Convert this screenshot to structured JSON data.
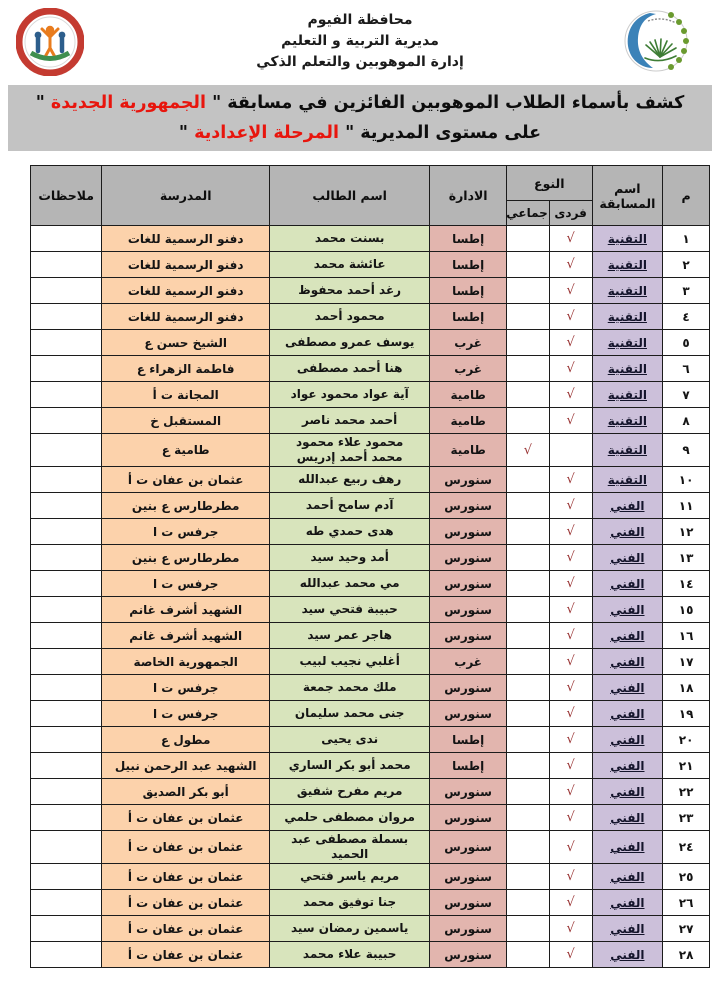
{
  "colors": {
    "header_gray": "#b5b5b5",
    "title_bar_gray": "#c3c3c3",
    "highlight_red": "#e8150d",
    "competition_purple": "#ccc0da",
    "administration_rose": "#e2b5ae",
    "student_green": "#d8e4bc",
    "school_peach": "#fcd2ab",
    "check_red": "#993333",
    "border_black": "#1c1c1c"
  },
  "header": {
    "line1": "محافظة الفيوم",
    "line2": "مديرية التربية و التعليم",
    "line3": "إدارة الموهوبين والتعلم الذكي",
    "left_logo_icon": "gifted-administration-seal-icon",
    "right_logo_icon": "fayoum-education-directorate-logo-icon"
  },
  "title": {
    "line1": {
      "black": "كشف بأسماء الطلاب الموهوبين الفائزين في مسابقة \" ",
      "red": "الجمهورية الجديدة",
      "end": " \""
    },
    "line2": {
      "black": "على مستوى المديرية \" ",
      "red": "المرحلة الإعدادية",
      "end": " \""
    }
  },
  "table": {
    "check_glyph": "√",
    "columns": {
      "no": "م",
      "competition": "اسم المسابقة",
      "type": "النوع",
      "individual": "فردى",
      "group": "جماعي",
      "administration": "الادارة",
      "student": "اسم الطالب",
      "school": "المدرسة",
      "notes": "ملاحظات"
    },
    "rows": [
      {
        "no": "١",
        "competition": "التقنية",
        "type": "individual",
        "administration": "إطسا",
        "student": "بسنت محمد",
        "student2": "",
        "school": "دفنو الرسمية للغات",
        "notes": ""
      },
      {
        "no": "٢",
        "competition": "التقنية",
        "type": "individual",
        "administration": "إطسا",
        "student": "عائشة محمد",
        "student2": "",
        "school": "دفنو الرسمية للغات",
        "notes": ""
      },
      {
        "no": "٣",
        "competition": "التقنية",
        "type": "individual",
        "administration": "إطسا",
        "student": "رغد أحمد محفوظ",
        "student2": "",
        "school": "دفنو الرسمية للغات",
        "notes": ""
      },
      {
        "no": "٤",
        "competition": "التقنية",
        "type": "individual",
        "administration": "إطسا",
        "student": "محمود أحمد",
        "student2": "",
        "school": "دفنو الرسمية للغات",
        "notes": ""
      },
      {
        "no": "٥",
        "competition": "التقنية",
        "type": "individual",
        "administration": "غرب",
        "student": "يوسف عمرو مصطفى",
        "student2": "",
        "school": "الشيخ حسن ع",
        "notes": ""
      },
      {
        "no": "٦",
        "competition": "التقنية",
        "type": "individual",
        "administration": "غرب",
        "student": "هنا أحمد مصطفى",
        "student2": "",
        "school": "فاطمة الزهراء ع",
        "notes": ""
      },
      {
        "no": "٧",
        "competition": "التقنية",
        "type": "individual",
        "administration": "طامية",
        "student": "آية عواد محمود عواد",
        "student2": "",
        "school": "المجانة ت أ",
        "notes": ""
      },
      {
        "no": "٨",
        "competition": "التقنية",
        "type": "individual",
        "administration": "طامية",
        "student": "أحمد محمد ناصر",
        "student2": "",
        "school": "المستقبل خ",
        "notes": ""
      },
      {
        "no": "٩",
        "competition": "التقنية",
        "type": "group",
        "administration": "طامية",
        "student": "محمود علاء محمود",
        "student2": "محمد أحمد إدريس",
        "school": "طامية ع",
        "notes": ""
      },
      {
        "no": "١٠",
        "competition": "التقنية",
        "type": "individual",
        "administration": "سنورس",
        "student": "رهف ربيع عبدالله",
        "student2": "",
        "school": "عثمان بن عفان ت أ",
        "notes": ""
      },
      {
        "no": "١١",
        "competition": "الفني",
        "type": "individual",
        "administration": "سنورس",
        "student": "آدم سامح أحمد",
        "student2": "",
        "school": "مطرطارس ع بنين",
        "notes": ""
      },
      {
        "no": "١٢",
        "competition": "الفني",
        "type": "individual",
        "administration": "سنورس",
        "student": "هدى حمدي طه",
        "student2": "",
        "school": "جرفس ت ا",
        "notes": ""
      },
      {
        "no": "١٣",
        "competition": "الفني",
        "type": "individual",
        "administration": "سنورس",
        "student": "أمد وحيد سيد",
        "student2": "",
        "school": "مطرطارس ع بنين",
        "notes": ""
      },
      {
        "no": "١٤",
        "competition": "الفني",
        "type": "individual",
        "administration": "سنورس",
        "student": "مي محمد عبدالله",
        "student2": "",
        "school": "جرفس ت ا",
        "notes": ""
      },
      {
        "no": "١٥",
        "competition": "الفني",
        "type": "individual",
        "administration": "سنورس",
        "student": "حبيبة فتحي سيد",
        "student2": "",
        "school": "الشهيد أشرف غانم",
        "notes": ""
      },
      {
        "no": "١٦",
        "competition": "الفني",
        "type": "individual",
        "administration": "سنورس",
        "student": "هاجر عمر سيد",
        "student2": "",
        "school": "الشهيد أشرف غانم",
        "notes": ""
      },
      {
        "no": "١٧",
        "competition": "الفني",
        "type": "individual",
        "administration": "غرب",
        "student": "أغلبي نجيب لبيب",
        "student2": "",
        "school": "الجمهورية الخاصة",
        "notes": ""
      },
      {
        "no": "١٨",
        "competition": "الفني",
        "type": "individual",
        "administration": "سنورس",
        "student": "ملك محمد جمعة",
        "student2": "",
        "school": "جرفس ت ا",
        "notes": ""
      },
      {
        "no": "١٩",
        "competition": "الفني",
        "type": "individual",
        "administration": "سنورس",
        "student": "جنى محمد سليمان",
        "student2": "",
        "school": "جرفس ت ا",
        "notes": ""
      },
      {
        "no": "٢٠",
        "competition": "الفني",
        "type": "individual",
        "administration": "إطسا",
        "student": "ندى يحيى",
        "student2": "",
        "school": "مطول ع",
        "notes": ""
      },
      {
        "no": "٢١",
        "competition": "الفني",
        "type": "individual",
        "administration": "إطسا",
        "student": "محمد أبو بكر الساري",
        "student2": "",
        "school": "الشهيد عبد الرحمن نبيل",
        "notes": ""
      },
      {
        "no": "٢٢",
        "competition": "الفني",
        "type": "individual",
        "administration": "سنورس",
        "student": "مريم مفرح شفيق",
        "student2": "",
        "school": "أبو بكر الصديق",
        "notes": ""
      },
      {
        "no": "٢٣",
        "competition": "الفني",
        "type": "individual",
        "administration": "سنورس",
        "student": "مروان مصطفى حلمي",
        "student2": "",
        "school": "عثمان بن عفان ت أ",
        "notes": ""
      },
      {
        "no": "٢٤",
        "competition": "الفني",
        "type": "individual",
        "administration": "سنورس",
        "student": "بسملة مصطفى عبد الحميد",
        "student2": "",
        "school": "عثمان بن عفان ت أ",
        "notes": ""
      },
      {
        "no": "٢٥",
        "competition": "الفني",
        "type": "individual",
        "administration": "سنورس",
        "student": "مريم ياسر فتحي",
        "student2": "",
        "school": "عثمان بن عفان ت أ",
        "notes": ""
      },
      {
        "no": "٢٦",
        "competition": "الفني",
        "type": "individual",
        "administration": "سنورس",
        "student": "جنا توفيق محمد",
        "student2": "",
        "school": "عثمان بن عفان ت أ",
        "notes": ""
      },
      {
        "no": "٢٧",
        "competition": "الفني",
        "type": "individual",
        "administration": "سنورس",
        "student": "ياسمين رمضان سيد",
        "student2": "",
        "school": "عثمان بن عفان ت أ",
        "notes": ""
      },
      {
        "no": "٢٨",
        "competition": "الفني",
        "type": "individual",
        "administration": "سنورس",
        "student": "حبيبة علاء محمد",
        "student2": "",
        "school": "عثمان بن عفان ت أ",
        "notes": ""
      }
    ]
  }
}
